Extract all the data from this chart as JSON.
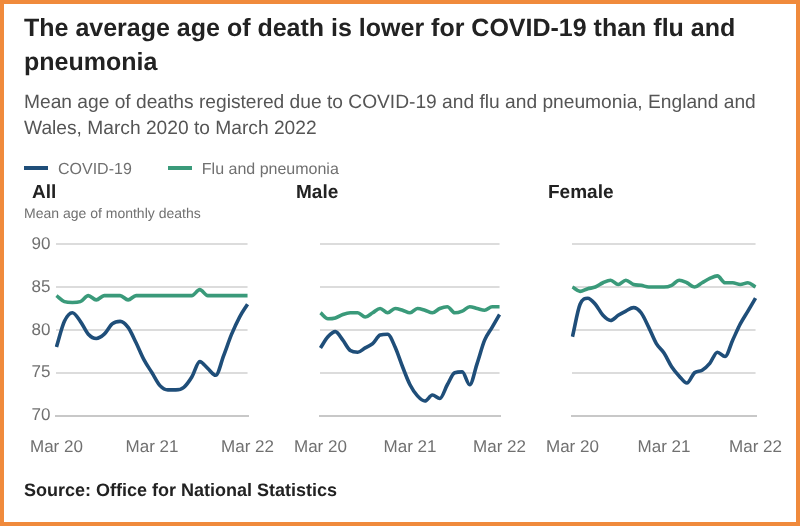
{
  "chart_data": [
    {
      "type": "other",
      "title": "The average age of death is lower for COVID-19 than flu and pneumonia",
      "subtitle": "Mean age of deaths registered due to COVID-19 and flu and pneumonia, England and Wales, March 2020 to March 2022",
      "annotations": [
        "Source: Office for National Statistics"
      ]
    },
    {
      "type": "line",
      "title": "All",
      "ylabel": "Mean age of monthly deaths",
      "categories": [
        "Mar 20",
        null,
        null,
        null,
        null,
        null,
        null,
        null,
        null,
        null,
        null,
        null,
        "Mar 21",
        null,
        null,
        null,
        null,
        null,
        null,
        null,
        null,
        null,
        null,
        null,
        "Mar 22"
      ],
      "ylim": [
        70,
        90
      ],
      "yticks": [
        70,
        75,
        80,
        85,
        90
      ],
      "grid": "y",
      "legend": "top",
      "marker": "none",
      "series": [
        {
          "name": "COVID-19",
          "color": "#1f4e79",
          "values": [
            78,
            81,
            82,
            81,
            79.5,
            79,
            79.5,
            80.7,
            81,
            80.3,
            78.5,
            76.5,
            75,
            73.5,
            73,
            73,
            73.3,
            74.5,
            76.3,
            75.5,
            74.7,
            77,
            79.5,
            81.5,
            83
          ]
        },
        {
          "name": "Flu and pneumonia",
          "color": "#3a9a7a",
          "values": [
            84,
            83.3,
            83.2,
            83.3,
            84,
            83.5,
            84,
            84,
            84,
            83.5,
            84,
            84,
            84,
            84,
            84,
            84,
            84,
            84,
            84.7,
            84,
            84,
            84,
            84,
            84,
            84
          ]
        }
      ]
    },
    {
      "type": "line",
      "title": "Male",
      "categories": [
        "Mar 20",
        null,
        null,
        null,
        null,
        null,
        null,
        null,
        null,
        null,
        null,
        null,
        "Mar 21",
        null,
        null,
        null,
        null,
        null,
        null,
        null,
        null,
        null,
        null,
        null,
        "Mar 22"
      ],
      "ylim": [
        70,
        90
      ],
      "yticks": [
        70,
        75,
        80,
        85,
        90
      ],
      "tick_labels": "x",
      "grid": "y",
      "marker": "none",
      "series": [
        {
          "color": "#1f4e79",
          "values": [
            77.9,
            79.2,
            79.8,
            78.8,
            77.6,
            77.4,
            77.9,
            78.4,
            79.4,
            79.5,
            78,
            75.7,
            73.6,
            72.3,
            71.7,
            72.4,
            72,
            73.6,
            75,
            75.1,
            73.6,
            76.1,
            78.8,
            80.3,
            81.8
          ]
        },
        {
          "color": "#3a9a7a",
          "values": [
            82,
            81.3,
            81.4,
            81.8,
            82,
            82,
            81.5,
            82,
            82.5,
            82,
            82.5,
            82.3,
            82,
            82.5,
            82.3,
            82,
            82.5,
            82.7,
            82,
            82.2,
            82.7,
            82.5,
            82.3,
            82.7,
            82.7
          ]
        }
      ]
    },
    {
      "type": "line",
      "title": "Female",
      "categories": [
        "Mar 20",
        null,
        null,
        null,
        null,
        null,
        null,
        null,
        null,
        null,
        null,
        null,
        "Mar 21",
        null,
        null,
        null,
        null,
        null,
        null,
        null,
        null,
        null,
        null,
        null,
        "Mar 22"
      ],
      "ylim": [
        70,
        90
      ],
      "yticks": [
        70,
        75,
        80,
        85,
        90
      ],
      "tick_labels": "x",
      "grid": "y",
      "marker": "none",
      "series": [
        {
          "color": "#1f4e79",
          "values": [
            79.2,
            83,
            83.7,
            83,
            81.7,
            81.1,
            81.7,
            82.2,
            82.6,
            82,
            80.3,
            78.4,
            77.3,
            75.7,
            74.6,
            73.8,
            75,
            75.3,
            76.1,
            77.4,
            76.9,
            78.8,
            80.7,
            82.2,
            83.7
          ]
        },
        {
          "color": "#3a9a7a",
          "values": [
            85,
            84.5,
            84.8,
            85,
            85.5,
            85.8,
            85.3,
            85.8,
            85.3,
            85.2,
            85,
            85,
            85,
            85.2,
            85.8,
            85.5,
            85,
            85.5,
            86,
            86.3,
            85.5,
            85.5,
            85.3,
            85.5,
            85
          ]
        }
      ]
    }
  ]
}
